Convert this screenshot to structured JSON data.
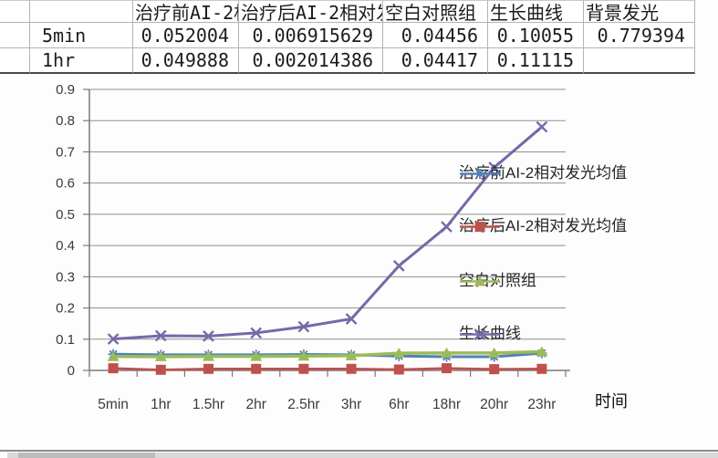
{
  "table": {
    "columns": [
      "",
      "",
      "治疗前AI-2相对发光均值",
      "治疗后AI-2相对发光均值",
      "空白对照组",
      "生长曲线",
      "背景发光"
    ],
    "rows": [
      {
        "label": "5min",
        "values": [
          "0.052004",
          "0.006915629",
          "0.04456",
          "0.10055",
          "0.779394"
        ]
      },
      {
        "label": "1hr",
        "values": [
          "0.049888",
          "0.002014386",
          "0.04417",
          "0.11115",
          ""
        ]
      }
    ]
  },
  "chart_data": {
    "type": "line",
    "categories": [
      "5min",
      "1hr",
      "1.5hr",
      "2hr",
      "2.5hr",
      "3hr",
      "6hr",
      "18hr",
      "20hr",
      "23hr"
    ],
    "series": [
      {
        "name": "治疗前AI-2相对发光均值",
        "color": "#4F81BD",
        "marker": "star",
        "values": [
          0.052,
          0.0499,
          0.05,
          0.05,
          0.051,
          0.05,
          0.046,
          0.044,
          0.044,
          0.055
        ]
      },
      {
        "name": "治疗后AI-2相对发光均值",
        "color": "#C0504D",
        "marker": "square",
        "values": [
          0.0069,
          0.002,
          0.005,
          0.005,
          0.005,
          0.005,
          0.003,
          0.007,
          0.004,
          0.005
        ]
      },
      {
        "name": "空白对照组",
        "color": "#9BBB59",
        "marker": "triangle",
        "values": [
          0.0446,
          0.0442,
          0.045,
          0.045,
          0.046,
          0.047,
          0.055,
          0.056,
          0.056,
          0.06
        ]
      },
      {
        "name": "生长曲线",
        "color": "#7569A8",
        "marker": "x",
        "values": [
          0.1006,
          0.1112,
          0.11,
          0.12,
          0.14,
          0.165,
          0.335,
          0.46,
          0.65,
          0.78
        ]
      }
    ],
    "title": "",
    "xlabel": "时间",
    "ylabel": "",
    "ylim": [
      0,
      0.9
    ],
    "ytick_step": 0.1,
    "grid": true,
    "legend_position": "right-overlay"
  },
  "colors": {
    "gridline": "#8f8f8f",
    "axis": "#7a7a7a",
    "tick_label": "#3a3a3a",
    "table_border": "#b3b3b3",
    "table_border_heavy": "#4a4a4a"
  }
}
